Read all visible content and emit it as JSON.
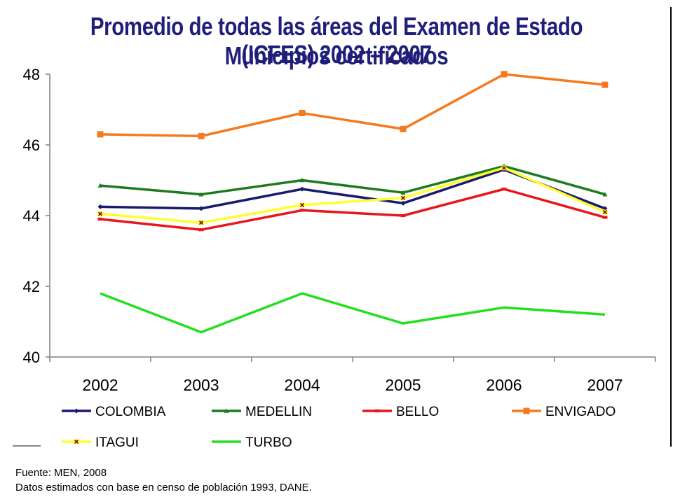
{
  "page": {
    "title_line1": "Promedio de todas las áreas del Examen de Estado (ICFES) 2002 – 2007",
    "title_line2": "Municipios certificados",
    "footnote_line1": "Fuente: MEN, 2008",
    "footnote_line2": "Datos estimados con base en censo de población 1993, DANE."
  },
  "chart_data": {
    "type": "line",
    "title": "Promedio de todas las áreas del Examen de Estado (ICFES) 2002 – 2007",
    "subtitle": "Municipios certificados",
    "xlabel": "",
    "ylabel": "",
    "categories": [
      "2002",
      "2003",
      "2004",
      "2005",
      "2006",
      "2007"
    ],
    "ylim": [
      40,
      48
    ],
    "yticks": [
      40,
      42,
      44,
      46,
      48
    ],
    "grid": false,
    "legend_position": "bottom",
    "series": [
      {
        "name": "COLOMBIA",
        "color": "#1a1a6e",
        "marker": "diamond",
        "values": [
          44.25,
          44.2,
          44.75,
          44.35,
          45.3,
          44.2
        ]
      },
      {
        "name": "MEDELLIN",
        "color": "#1e7a1e",
        "marker": "triangle",
        "values": [
          44.85,
          44.6,
          45.0,
          44.65,
          45.4,
          44.6
        ]
      },
      {
        "name": "BELLO",
        "color": "#e8161b",
        "marker": "dash",
        "values": [
          43.9,
          43.6,
          44.15,
          44.0,
          44.75,
          43.95
        ]
      },
      {
        "name": "ENVIGADO",
        "color": "#f47a20",
        "marker": "square",
        "values": [
          46.3,
          46.25,
          46.9,
          46.45,
          48.0,
          47.7
        ]
      },
      {
        "name": "ITAGUI",
        "color": "#ffff2e",
        "marker": "x",
        "values": [
          44.05,
          43.8,
          44.3,
          44.5,
          45.35,
          44.1
        ]
      },
      {
        "name": "TURBO",
        "color": "#22e01f",
        "marker": "none",
        "values": [
          41.8,
          40.7,
          41.8,
          40.95,
          41.4,
          41.2
        ]
      }
    ]
  }
}
